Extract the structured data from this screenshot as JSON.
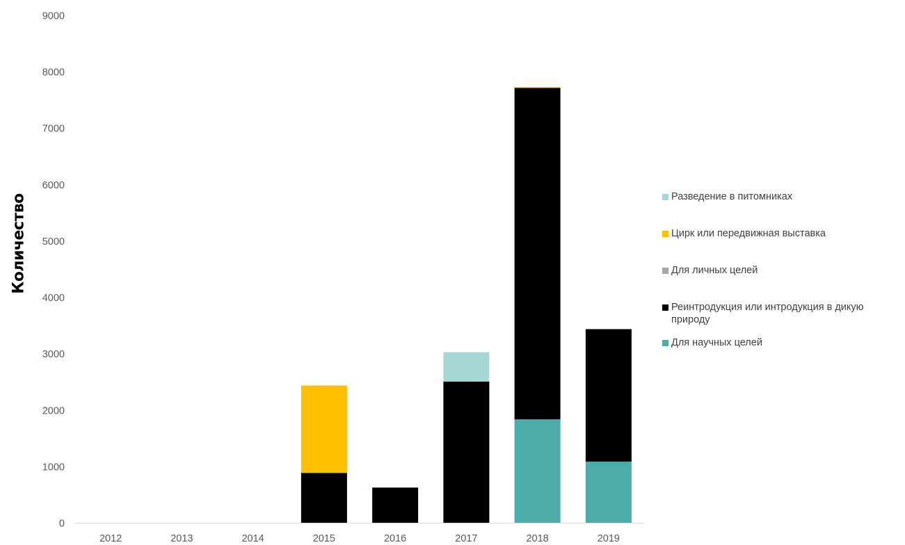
{
  "chart_data": {
    "type": "bar",
    "stacked": true,
    "categories": [
      "2012",
      "2013",
      "2014",
      "2015",
      "2016",
      "2017",
      "2018",
      "2019"
    ],
    "ylim": [
      0,
      9000
    ],
    "yticks": [
      0,
      1000,
      2000,
      3000,
      4000,
      5000,
      6000,
      7000,
      8000,
      9000
    ],
    "ylabel": "Количество",
    "grid": false,
    "legend_position": "right",
    "series": [
      {
        "name": "Для научных целей",
        "color": "#4BACAA",
        "values": [
          0,
          0,
          0,
          0,
          0,
          0,
          1840,
          1090
        ]
      },
      {
        "name": "Реинтродукция или интродукция в дикую природу",
        "color": "#000000",
        "values": [
          0,
          0,
          0,
          890,
          630,
          2510,
          5880,
          2350
        ]
      },
      {
        "name": "Для личных целей",
        "color": "#A6A6A6",
        "values": [
          0,
          0,
          0,
          0,
          0,
          0,
          0,
          0
        ]
      },
      {
        "name": "Цирк или передвижная выставка",
        "color": "#FFC000",
        "values": [
          0,
          0,
          0,
          1550,
          0,
          0,
          10,
          0
        ]
      },
      {
        "name": "Разведение в питомниках",
        "color": "#A6D7D6",
        "values": [
          0,
          0,
          0,
          0,
          0,
          520,
          0,
          0
        ]
      }
    ]
  },
  "legend_order": [
    4,
    3,
    2,
    1,
    0
  ]
}
